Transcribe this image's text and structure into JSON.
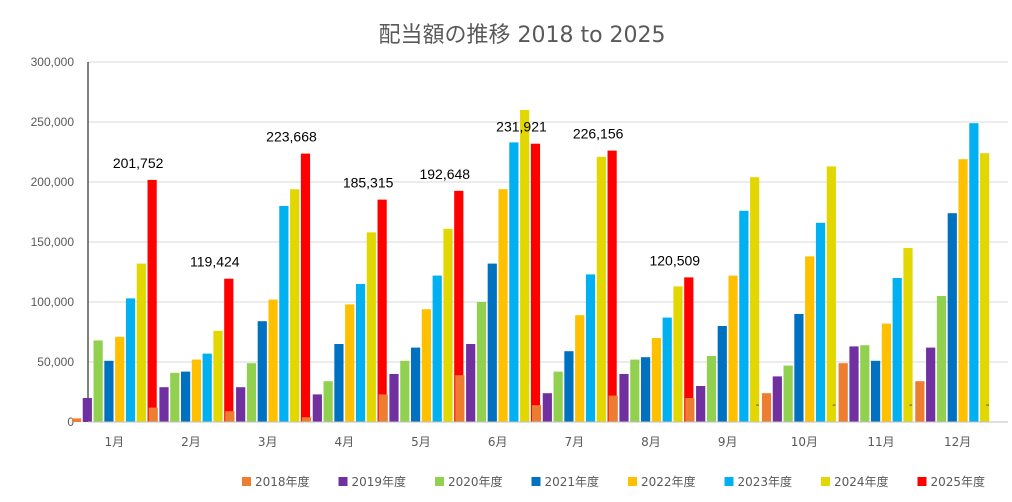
{
  "chart_data": {
    "type": "bar",
    "title": "配当額の推移 2018 to 2025",
    "xlabel": "",
    "ylabel": "",
    "ylim": [
      0,
      300000
    ],
    "yticks": [
      0,
      50000,
      100000,
      150000,
      200000,
      250000,
      300000
    ],
    "ytick_labels": [
      "0",
      "50,000",
      "100,000",
      "150,000",
      "200,000",
      "250,000",
      "300,000"
    ],
    "grid": true,
    "legend_position": "bottom",
    "categories": [
      "1月",
      "2月",
      "3月",
      "4月",
      "5月",
      "6月",
      "7月",
      "8月",
      "9月",
      "10月",
      "11月",
      "12月"
    ],
    "series": [
      {
        "name": "2018年度",
        "color": "#ED7D31",
        "values": [
          3000,
          12000,
          9000,
          4000,
          23000,
          39000,
          14000,
          22000,
          20000,
          24000,
          49000,
          34000
        ]
      },
      {
        "name": "2019年度",
        "color": "#7030A0",
        "values": [
          20000,
          29000,
          29000,
          23000,
          40000,
          65000,
          24000,
          40000,
          30000,
          38000,
          63000,
          62000
        ]
      },
      {
        "name": "2020年度",
        "color": "#92D050",
        "values": [
          68000,
          41000,
          49000,
          34000,
          51000,
          100000,
          42000,
          52000,
          55000,
          47000,
          64000,
          105000
        ]
      },
      {
        "name": "2021年度",
        "color": "#0070C0",
        "values": [
          51000,
          42000,
          84000,
          65000,
          62000,
          132000,
          59000,
          54000,
          80000,
          90000,
          51000,
          174000
        ]
      },
      {
        "name": "2022年度",
        "color": "#FFC000",
        "values": [
          71000,
          52000,
          102000,
          98000,
          94000,
          194000,
          89000,
          70000,
          122000,
          138000,
          82000,
          219000
        ]
      },
      {
        "name": "2023年度",
        "color": "#00B0F0",
        "values": [
          103000,
          57000,
          180000,
          115000,
          122000,
          233000,
          123000,
          87000,
          176000,
          166000,
          120000,
          249000
        ]
      },
      {
        "name": "2024年度",
        "color": "#E2D700",
        "values": [
          132000,
          76000,
          194000,
          158000,
          161000,
          260000,
          221000,
          113000,
          204000,
          213000,
          145000,
          224000
        ]
      },
      {
        "name": "2025年度",
        "color": "#FF0000",
        "values": [
          201752,
          119424,
          223668,
          185315,
          192648,
          231921,
          226156,
          120509,
          0,
          0,
          0,
          0
        ]
      }
    ],
    "data_labels": {
      "series": "2025年度",
      "labels": [
        "201,752",
        "119,424",
        "223,668",
        "185,315",
        "192,648",
        "231,921",
        "226,156",
        "120,509",
        "-",
        "-",
        "-",
        "-"
      ]
    }
  }
}
